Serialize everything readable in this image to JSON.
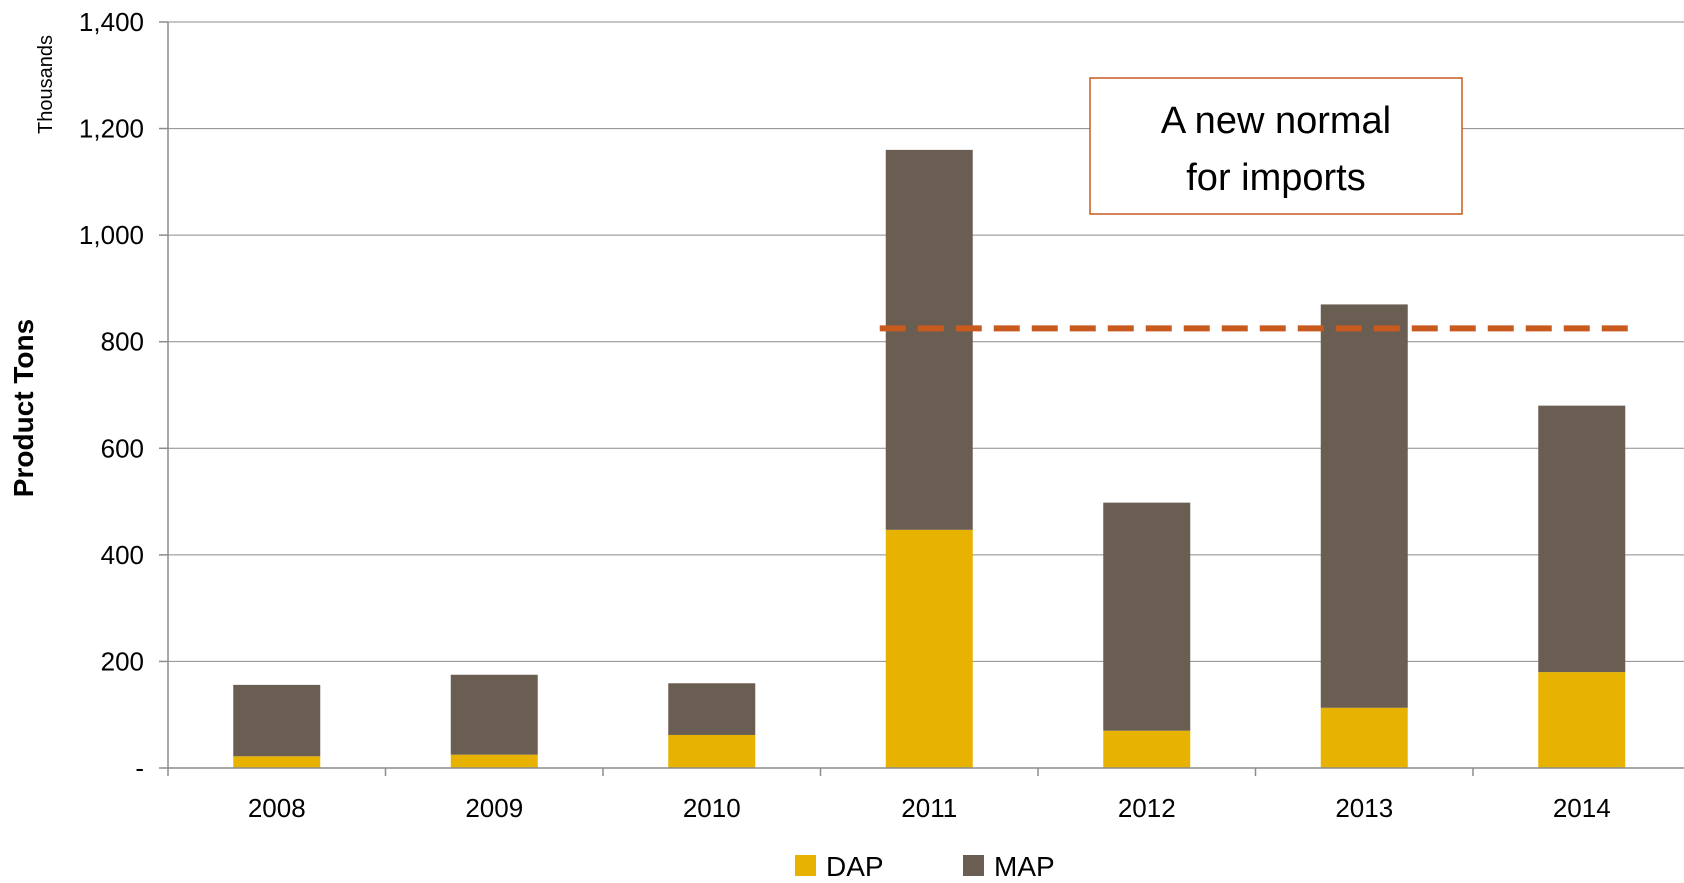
{
  "chart_data": {
    "type": "bar",
    "stacked": true,
    "categories": [
      "2008",
      "2009",
      "2010",
      "2011",
      "2012",
      "2013",
      "2014"
    ],
    "series": [
      {
        "name": "DAP",
        "color": "#E8B300",
        "values": [
          22,
          25,
          62,
          447,
          70,
          113,
          180
        ]
      },
      {
        "name": "MAP",
        "color": "#6A5E53",
        "values": [
          134,
          150,
          97,
          713,
          428,
          757,
          500
        ]
      }
    ],
    "ylim": [
      0,
      1400
    ],
    "yticks": [
      0,
      200,
      400,
      600,
      800,
      1000,
      1200,
      1400
    ],
    "ytick_labels": [
      "-",
      "200",
      "400",
      "600",
      "800",
      "1,000",
      "1,200",
      "1,400"
    ],
    "ylabel": "Product Tons",
    "yunit": "Thousands",
    "xlabel": "",
    "grid": true,
    "legend_position": "bottom",
    "reference_line": {
      "y": 825,
      "from_category": "2011",
      "to_category": "2014",
      "color": "#C85A1E",
      "style": "dashed"
    },
    "annotation": {
      "lines": [
        "A new normal",
        "for imports"
      ],
      "border_color": "#C85A1E"
    }
  }
}
